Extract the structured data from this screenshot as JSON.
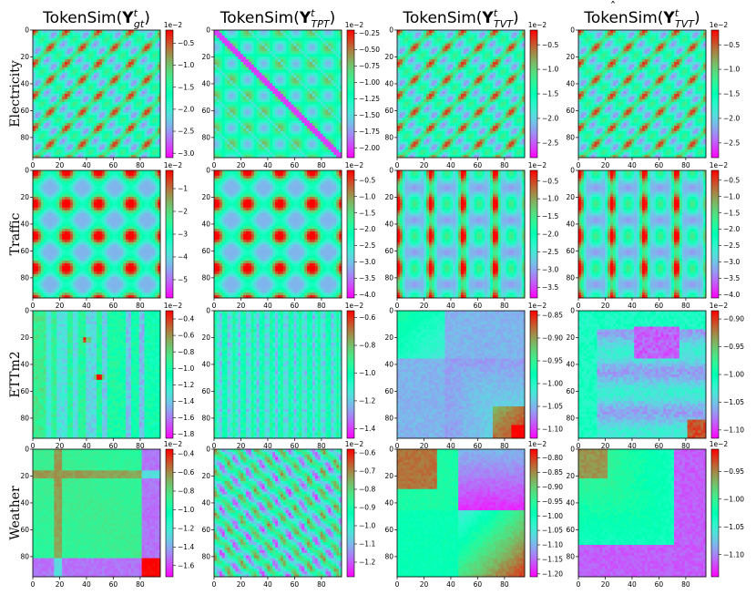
{
  "chart_data": {
    "type": "heatmap",
    "colormap": "rainbow",
    "columns": [
      {
        "label": "TokenSim(Y_gt^t)",
        "base": "TokenSim(",
        "sym": "Y",
        "sup": "t",
        "sub": "gt",
        "hat": false
      },
      {
        "label": "TokenSim(Y_TPT^t)",
        "base": "TokenSim(",
        "sym": "Y",
        "sup": "t",
        "sub": "TPT",
        "hat": false
      },
      {
        "label": "TokenSim(Y_TVT^t)",
        "base": "TokenSim(",
        "sym": "Y",
        "sup": "t",
        "sub": "TVT",
        "hat": false
      },
      {
        "label": "TokenSim(Ŷ_TVT^t)",
        "base": "TokenSim(",
        "sym": "Y",
        "sup": "t",
        "sub": "TVT",
        "hat": true
      }
    ],
    "rows": [
      "Electricity",
      "Traffic",
      "ETTm2",
      "Weather"
    ],
    "axis": {
      "xticks": [
        "0",
        "20",
        "40",
        "60",
        "80"
      ],
      "yticks": [
        "0",
        "20",
        "40",
        "60",
        "80"
      ],
      "tick_values": [
        0,
        20,
        40,
        60,
        80
      ],
      "range": [
        0,
        95
      ]
    },
    "colorbar_exponent": "1e−2",
    "colorbars": [
      {
        "min": -3.1,
        "max": -0.2,
        "ticks": [
          "−0.5",
          "−1.0",
          "−1.5",
          "−2.0",
          "−2.5",
          "−3.0"
        ]
      },
      {
        "min": -2.15,
        "max": -0.2,
        "ticks": [
          "−0.25",
          "−0.50",
          "−0.75",
          "−1.00",
          "−1.25",
          "−1.50",
          "−1.75",
          "−2.00"
        ]
      },
      {
        "min": -2.8,
        "max": -0.2,
        "ticks": [
          "−0.5",
          "−1.0",
          "−1.5",
          "−2.0",
          "−2.5"
        ]
      },
      {
        "min": -2.8,
        "max": -0.2,
        "ticks": [
          "−0.5",
          "−1.0",
          "−1.5",
          "−2.0",
          "−2.5"
        ]
      },
      {
        "min": -5.8,
        "max": -0.2,
        "ticks": [
          "−1",
          "−2",
          "−3",
          "−4",
          "−5"
        ]
      },
      {
        "min": -4.1,
        "max": -0.2,
        "ticks": [
          "−0.5",
          "−1.0",
          "−1.5",
          "−2.0",
          "−2.5",
          "−3.0",
          "−3.5",
          "−4.0"
        ]
      },
      {
        "min": -3.8,
        "max": -0.2,
        "ticks": [
          "−0.5",
          "−1.0",
          "−1.5",
          "−2.0",
          "−2.5",
          "−3.0",
          "−3.5"
        ]
      },
      {
        "min": -4.1,
        "max": -0.2,
        "ticks": [
          "−0.5",
          "−1.0",
          "−1.5",
          "−2.0",
          "−2.5",
          "−3.0",
          "−3.5",
          "−4.0"
        ]
      },
      {
        "min": -1.85,
        "max": -0.3,
        "ticks": [
          "−0.4",
          "−0.6",
          "−0.8",
          "−1.0",
          "−1.2",
          "−1.4",
          "−1.6",
          "−1.8"
        ]
      },
      {
        "min": -1.47,
        "max": -0.55,
        "ticks": [
          "−0.6",
          "−0.8",
          "−1.0",
          "−1.2",
          "−1.4"
        ]
      },
      {
        "min": -1.12,
        "max": -0.84,
        "ticks": [
          "−0.85",
          "−0.90",
          "−0.95",
          "−1.00",
          "−1.05",
          "−1.10"
        ]
      },
      {
        "min": -1.115,
        "max": -0.885,
        "ticks": [
          "−0.90",
          "−0.95",
          "−1.00",
          "−1.05",
          "−1.10"
        ]
      },
      {
        "min": -1.72,
        "max": -0.35,
        "ticks": [
          "−0.4",
          "−0.6",
          "−0.8",
          "−1.0",
          "−1.2",
          "−1.4",
          "−1.6"
        ]
      },
      {
        "min": -1.28,
        "max": -0.58,
        "ticks": [
          "−0.6",
          "−0.7",
          "−0.8",
          "−0.9",
          "−1.0",
          "−1.1",
          "−1.2"
        ]
      },
      {
        "min": -1.21,
        "max": -0.77,
        "ticks": [
          "−0.80",
          "−0.85",
          "−0.90",
          "−0.95",
          "−1.00",
          "−1.05",
          "−1.10",
          "−1.15",
          "−1.20"
        ]
      },
      {
        "min": -1.14,
        "max": -0.91,
        "ticks": [
          "−0.95",
          "−1.00",
          "−1.05",
          "−1.10"
        ]
      }
    ]
  }
}
